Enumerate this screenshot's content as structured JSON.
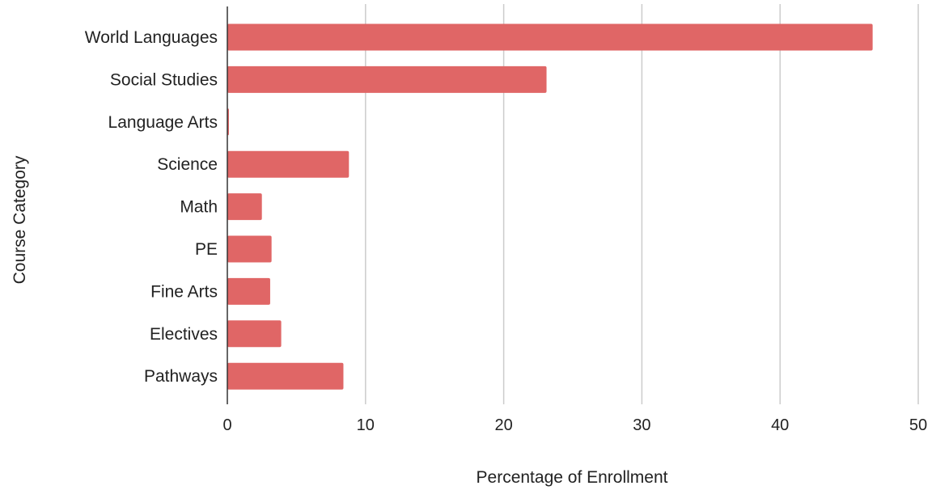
{
  "chart_data": {
    "type": "bar",
    "orientation": "horizontal",
    "title": "",
    "xlabel": "Percentage of Enrollment",
    "ylabel": "Course Category",
    "categories": [
      "World Languages",
      "Social Studies",
      "Language Arts",
      "Science",
      "Math",
      "PE",
      "Fine Arts",
      "Electives",
      "Pathways"
    ],
    "values": [
      46.7,
      23.1,
      0.1,
      8.8,
      2.5,
      3.2,
      3.1,
      3.9,
      8.4
    ],
    "xlim": [
      0,
      50
    ],
    "xticks": [
      0,
      10,
      20,
      30,
      40,
      50
    ],
    "grid": true,
    "legend": "none",
    "bar_color": "#e06666",
    "grid_color": "#cccccc"
  }
}
